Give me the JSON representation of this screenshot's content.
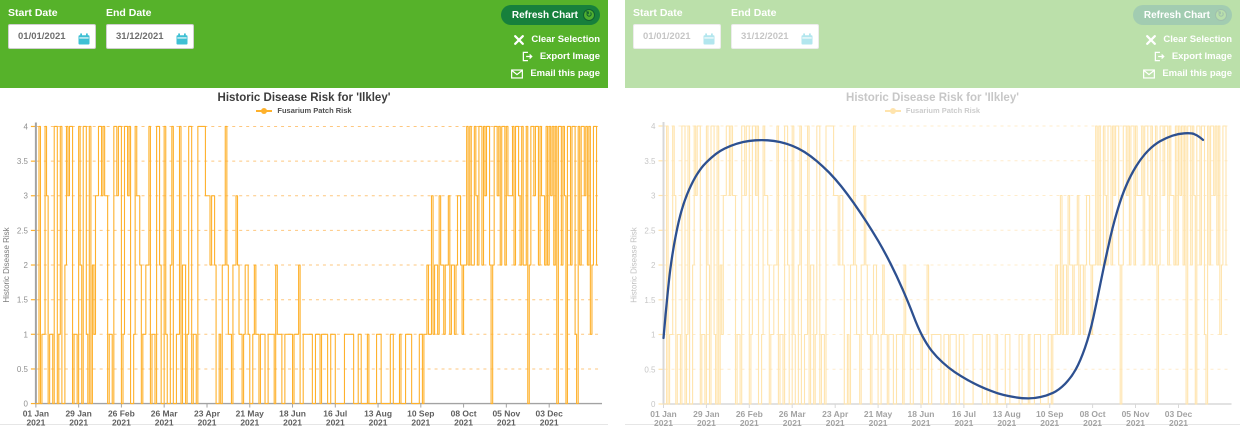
{
  "header": {
    "start_date_label": "Start Date",
    "end_date_label": "End Date",
    "start_date_value": "01/01/2021",
    "end_date_value": "31/12/2021",
    "refresh_button_label": "Refresh Chart",
    "links": [
      {
        "label": "Clear Selection"
      },
      {
        "label": "Export Image"
      },
      {
        "label": "Email this page"
      }
    ]
  },
  "colors": {
    "header_green": "#56b22a",
    "button_dark_green": "#17803c",
    "badge_green": "#50ae2f",
    "calendar_teal": "#3fc0d4",
    "step_orange": "#feb12c",
    "grid_orange": "#fec77f",
    "overlay_blue": "#2d5090",
    "faded_step": "#ffe4ad",
    "faded_grid": "#ffeccb"
  },
  "panels": [
    {
      "name": "left",
      "dimmed": false,
      "show_step": true,
      "show_overlay": false
    },
    {
      "name": "right",
      "dimmed": true,
      "show_step": true,
      "show_overlay": true
    }
  ],
  "chart_data": {
    "type": "line",
    "title": "Historic Disease Risk for 'Ilkley'",
    "ylabel": "Historic Disease Risk",
    "ylim": [
      0,
      4
    ],
    "yticks": [
      0,
      0.5,
      1,
      1.5,
      2,
      2.5,
      3,
      3.5,
      4
    ],
    "xticks": [
      {
        "day": 0,
        "label": "01 Jan",
        "year": "2021"
      },
      {
        "day": 28,
        "label": "29 Jan",
        "year": "2021"
      },
      {
        "day": 56,
        "label": "26 Feb",
        "year": "2021"
      },
      {
        "day": 84,
        "label": "26 Mar",
        "year": "2021"
      },
      {
        "day": 112,
        "label": "23 Apr",
        "year": "2021"
      },
      {
        "day": 140,
        "label": "21 May",
        "year": "2021"
      },
      {
        "day": 168,
        "label": "18 Jun",
        "year": "2021"
      },
      {
        "day": 196,
        "label": "16 Jul",
        "year": "2021"
      },
      {
        "day": 224,
        "label": "13 Aug",
        "year": "2021"
      },
      {
        "day": 252,
        "label": "10 Sep",
        "year": "2021"
      },
      {
        "day": 280,
        "label": "08 Oct",
        "year": "2021"
      },
      {
        "day": 308,
        "label": "05 Nov",
        "year": "2021"
      },
      {
        "day": 336,
        "label": "03 Dec",
        "year": "2021"
      }
    ],
    "series": [
      {
        "name": "Fusarium Patch Risk",
        "type": "step",
        "runs": [
          [
            2,
            0
          ],
          [
            1,
            4
          ],
          [
            1,
            0
          ],
          [
            2,
            1
          ],
          [
            1,
            4
          ],
          [
            1,
            3
          ],
          [
            1,
            0
          ],
          [
            2,
            1
          ],
          [
            1,
            0
          ],
          [
            2,
            4
          ],
          [
            1,
            0
          ],
          [
            1,
            1
          ],
          [
            1,
            4
          ],
          [
            2,
            0
          ],
          [
            1,
            2
          ],
          [
            1,
            4
          ],
          [
            1,
            3
          ],
          [
            2,
            4
          ],
          [
            1,
            0
          ],
          [
            2,
            1
          ],
          [
            1,
            0
          ],
          [
            1,
            4
          ],
          [
            1,
            2
          ],
          [
            1,
            0
          ],
          [
            2,
            4
          ],
          [
            1,
            1
          ],
          [
            1,
            0
          ],
          [
            1,
            4
          ],
          [
            1,
            0
          ],
          [
            1,
            2
          ],
          [
            1,
            1
          ],
          [
            2,
            3
          ],
          [
            2,
            4
          ],
          [
            1,
            3
          ],
          [
            1,
            4
          ],
          [
            2,
            3
          ],
          [
            1,
            0
          ],
          [
            2,
            1
          ],
          [
            1,
            0
          ],
          [
            2,
            4
          ],
          [
            1,
            3
          ],
          [
            2,
            4
          ],
          [
            1,
            0
          ],
          [
            1,
            1
          ],
          [
            2,
            4
          ],
          [
            1,
            3
          ],
          [
            1,
            4
          ],
          [
            2,
            0
          ],
          [
            1,
            1
          ],
          [
            1,
            4
          ],
          [
            2,
            3
          ],
          [
            1,
            2
          ],
          [
            1,
            0
          ],
          [
            2,
            1
          ],
          [
            2,
            2
          ],
          [
            1,
            4
          ],
          [
            1,
            0
          ],
          [
            2,
            1
          ],
          [
            1,
            0
          ],
          [
            2,
            4
          ],
          [
            1,
            2
          ],
          [
            2,
            0
          ],
          [
            1,
            4
          ],
          [
            1,
            1
          ],
          [
            2,
            0
          ],
          [
            1,
            2
          ],
          [
            1,
            4
          ],
          [
            2,
            0
          ],
          [
            2,
            1
          ],
          [
            1,
            4
          ],
          [
            1,
            0
          ],
          [
            2,
            2
          ],
          [
            1,
            0
          ],
          [
            1,
            1
          ],
          [
            2,
            4
          ],
          [
            1,
            0
          ],
          [
            2,
            1
          ],
          [
            1,
            0
          ],
          [
            5,
            4
          ],
          [
            1,
            3
          ],
          [
            2,
            3
          ],
          [
            1,
            2
          ],
          [
            2,
            3
          ],
          [
            1,
            2
          ],
          [
            2,
            0
          ],
          [
            1,
            1
          ],
          [
            1,
            0
          ],
          [
            2,
            2
          ],
          [
            1,
            4
          ],
          [
            1,
            2
          ],
          [
            2,
            1
          ],
          [
            1,
            0
          ],
          [
            2,
            2
          ],
          [
            1,
            3
          ],
          [
            1,
            2
          ],
          [
            2,
            1
          ],
          [
            1,
            0
          ],
          [
            1,
            1
          ],
          [
            2,
            2
          ],
          [
            1,
            1
          ],
          [
            2,
            0
          ],
          [
            1,
            1
          ],
          [
            1,
            2
          ],
          [
            2,
            1
          ],
          [
            1,
            0
          ],
          [
            3,
            1
          ],
          [
            2,
            0
          ],
          [
            4,
            1
          ],
          [
            1,
            0
          ],
          [
            1,
            2
          ],
          [
            3,
            1
          ],
          [
            2,
            0
          ],
          [
            5,
            1
          ],
          [
            1,
            0
          ],
          [
            3,
            1
          ],
          [
            1,
            2
          ],
          [
            2,
            0
          ],
          [
            6,
            1
          ],
          [
            2,
            0
          ],
          [
            3,
            1
          ],
          [
            1,
            0
          ],
          [
            4,
            1
          ],
          [
            2,
            0
          ],
          [
            3,
            1
          ],
          [
            2,
            0
          ],
          [
            4,
            0
          ],
          [
            6,
            1
          ],
          [
            3,
            0
          ],
          [
            2,
            1
          ],
          [
            4,
            0
          ],
          [
            1,
            1
          ],
          [
            5,
            0
          ],
          [
            3,
            1
          ],
          [
            6,
            0
          ],
          [
            2,
            1
          ],
          [
            4,
            0
          ],
          [
            1,
            1
          ],
          [
            3,
            0
          ],
          [
            4,
            1
          ],
          [
            5,
            0
          ],
          [
            2,
            1
          ],
          [
            1,
            0
          ],
          [
            2,
            1
          ],
          [
            1,
            2
          ],
          [
            2,
            1
          ],
          [
            1,
            3
          ],
          [
            1,
            1
          ],
          [
            2,
            2
          ],
          [
            1,
            1
          ],
          [
            1,
            3
          ],
          [
            2,
            2
          ],
          [
            1,
            1
          ],
          [
            2,
            2
          ],
          [
            1,
            3
          ],
          [
            1,
            1
          ],
          [
            2,
            2
          ],
          [
            1,
            1
          ],
          [
            1,
            2
          ],
          [
            2,
            3
          ],
          [
            1,
            2
          ],
          [
            1,
            1
          ],
          [
            2,
            2
          ],
          [
            1,
            4
          ],
          [
            1,
            2
          ],
          [
            1,
            4
          ],
          [
            2,
            2
          ],
          [
            1,
            4
          ],
          [
            1,
            3
          ],
          [
            1,
            2
          ],
          [
            2,
            4
          ],
          [
            1,
            2
          ],
          [
            1,
            4
          ],
          [
            1,
            3
          ],
          [
            2,
            4
          ],
          [
            1,
            2
          ],
          [
            1,
            0
          ],
          [
            1,
            2
          ],
          [
            2,
            4
          ],
          [
            1,
            3
          ],
          [
            1,
            4
          ],
          [
            1,
            2
          ],
          [
            2,
            4
          ],
          [
            1,
            2
          ],
          [
            1,
            4
          ],
          [
            1,
            3
          ],
          [
            2,
            3
          ],
          [
            1,
            4
          ],
          [
            1,
            2
          ],
          [
            2,
            4
          ],
          [
            1,
            3
          ],
          [
            1,
            2
          ],
          [
            1,
            4
          ],
          [
            2,
            2
          ],
          [
            1,
            4
          ],
          [
            1,
            0
          ],
          [
            1,
            2
          ],
          [
            2,
            4
          ],
          [
            1,
            3
          ],
          [
            2,
            4
          ],
          [
            1,
            2
          ],
          [
            1,
            4
          ],
          [
            2,
            3
          ],
          [
            1,
            2
          ],
          [
            1,
            4
          ],
          [
            1,
            2
          ],
          [
            1,
            4
          ],
          [
            1,
            3
          ],
          [
            1,
            4
          ],
          [
            1,
            2
          ],
          [
            1,
            4
          ],
          [
            1,
            0
          ],
          [
            2,
            4
          ],
          [
            1,
            2
          ],
          [
            1,
            4
          ],
          [
            1,
            3
          ],
          [
            1,
            0
          ],
          [
            2,
            4
          ],
          [
            1,
            2
          ],
          [
            2,
            4
          ],
          [
            1,
            1
          ],
          [
            1,
            0
          ],
          [
            1,
            4
          ],
          [
            1,
            2
          ],
          [
            2,
            4
          ],
          [
            1,
            3
          ],
          [
            1,
            4
          ],
          [
            1,
            2
          ],
          [
            1,
            4
          ],
          [
            1,
            1
          ],
          [
            1,
            2
          ],
          [
            2,
            4
          ],
          [
            1,
            2
          ]
        ]
      }
    ],
    "overlay": {
      "type": "smooth-line",
      "points": [
        [
          0,
          0.95
        ],
        [
          3,
          1.7
        ],
        [
          6,
          2.2
        ],
        [
          10,
          2.65
        ],
        [
          14,
          2.95
        ],
        [
          19,
          3.2
        ],
        [
          24,
          3.38
        ],
        [
          28,
          3.48
        ],
        [
          34,
          3.6
        ],
        [
          40,
          3.68
        ],
        [
          48,
          3.75
        ],
        [
          56,
          3.79
        ],
        [
          64,
          3.8
        ],
        [
          72,
          3.79
        ],
        [
          80,
          3.75
        ],
        [
          88,
          3.68
        ],
        [
          96,
          3.57
        ],
        [
          104,
          3.42
        ],
        [
          112,
          3.24
        ],
        [
          120,
          3.02
        ],
        [
          128,
          2.77
        ],
        [
          136,
          2.5
        ],
        [
          144,
          2.2
        ],
        [
          152,
          1.85
        ],
        [
          160,
          1.45
        ],
        [
          166,
          1.1
        ],
        [
          172,
          0.85
        ],
        [
          178,
          0.68
        ],
        [
          186,
          0.52
        ],
        [
          194,
          0.4
        ],
        [
          202,
          0.3
        ],
        [
          210,
          0.22
        ],
        [
          218,
          0.15
        ],
        [
          226,
          0.11
        ],
        [
          234,
          0.08
        ],
        [
          242,
          0.08
        ],
        [
          250,
          0.12
        ],
        [
          258,
          0.2
        ],
        [
          266,
          0.38
        ],
        [
          272,
          0.62
        ],
        [
          278,
          1.0
        ],
        [
          283,
          1.5
        ],
        [
          288,
          2.05
        ],
        [
          293,
          2.55
        ],
        [
          299,
          3.0
        ],
        [
          305,
          3.3
        ],
        [
          312,
          3.55
        ],
        [
          320,
          3.73
        ],
        [
          328,
          3.83
        ],
        [
          336,
          3.89
        ],
        [
          344,
          3.9
        ],
        [
          348,
          3.87
        ],
        [
          352,
          3.8
        ]
      ]
    }
  }
}
